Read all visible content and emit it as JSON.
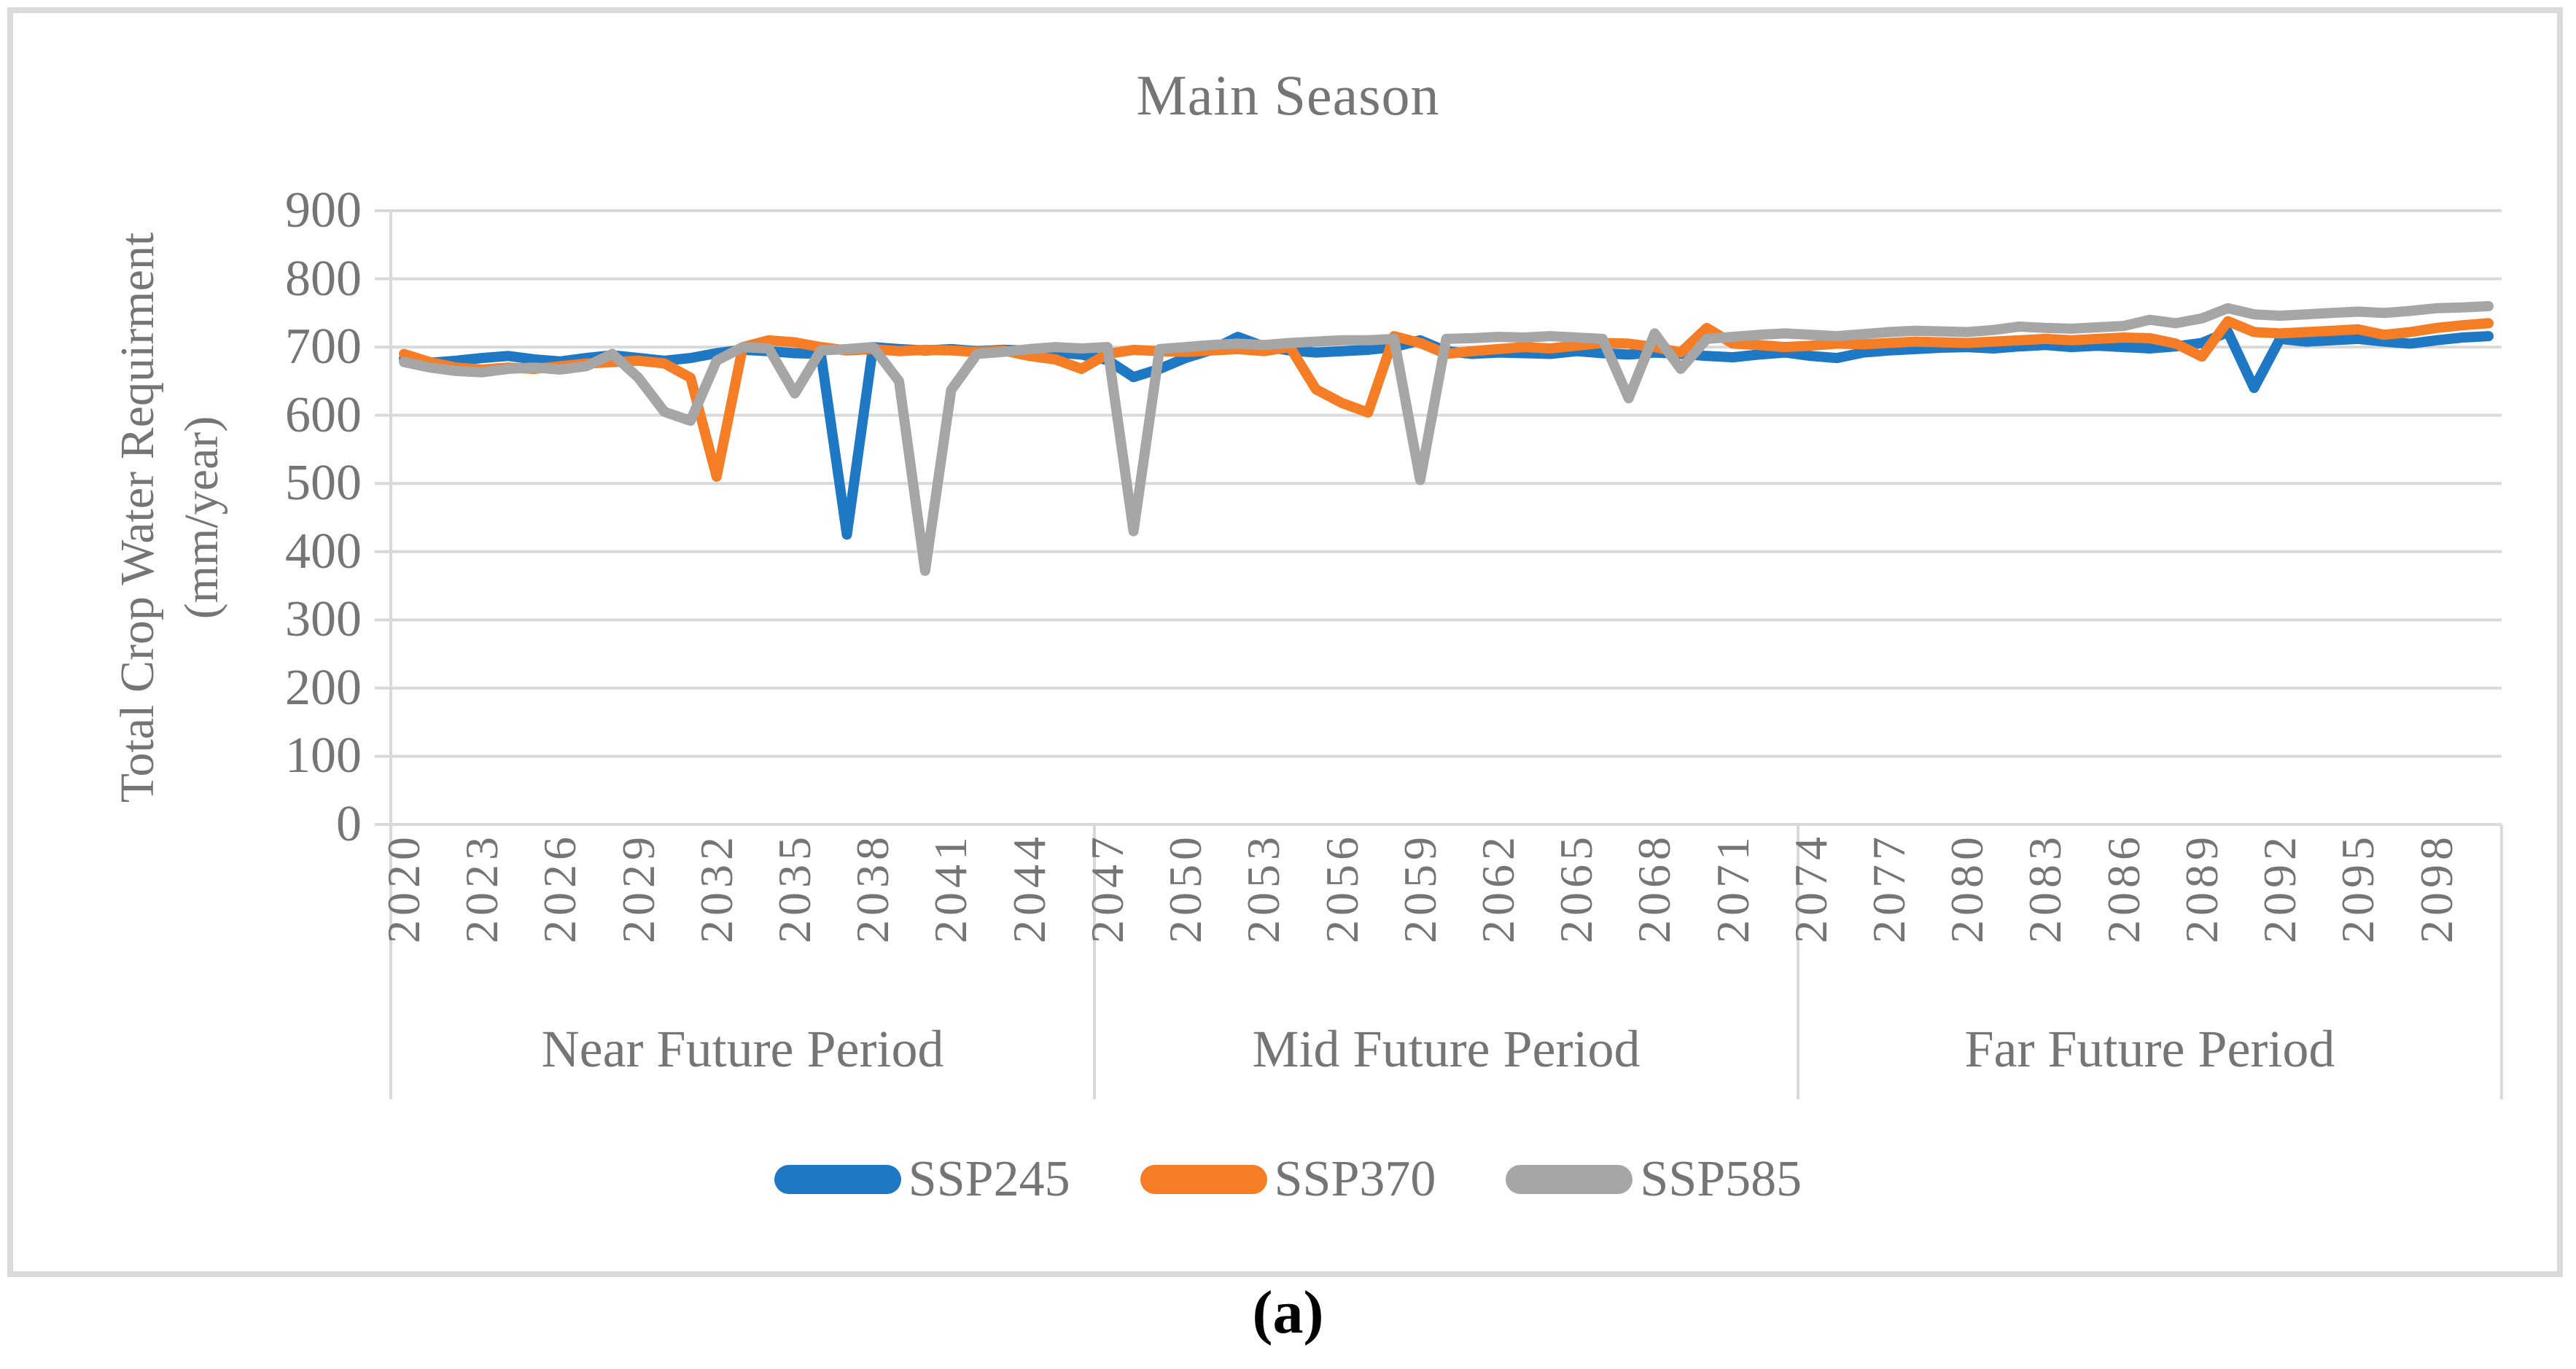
{
  "window": {
    "caption": "(a)"
  },
  "chart": {
    "title": "Main Season",
    "y_axis": {
      "title_line1": "Total Crop Water Requirment",
      "title_line2": "(mm/year)",
      "ticks": [
        0,
        100,
        200,
        300,
        400,
        500,
        600,
        700,
        800,
        900
      ]
    },
    "x_axis": {
      "tick_years": [
        2020,
        2023,
        2026,
        2029,
        2032,
        2035,
        2038,
        2041,
        2044,
        2047,
        2050,
        2053,
        2056,
        2059,
        2062,
        2065,
        2068,
        2071,
        2074,
        2077,
        2080,
        2083,
        2086,
        2089,
        2092,
        2095,
        2098
      ]
    },
    "periods": [
      {
        "label": "Near Future Period",
        "start": 2020,
        "end": 2046
      },
      {
        "label": "Mid Future Period",
        "start": 2047,
        "end": 2073
      },
      {
        "label": "Far Future Period",
        "start": 2074,
        "end": 2100
      }
    ],
    "colors": {
      "gridline": "#d9d9d9",
      "frame": "#dadada",
      "text": "#757575"
    }
  },
  "chart_data": {
    "type": "line",
    "title": "Main Season",
    "xlabel": "",
    "ylabel": "Total Crop Water Requirment (mm/year)",
    "ylim": [
      0,
      900
    ],
    "y_step": 100,
    "x_start": 2020,
    "x_end": 2100,
    "grid": true,
    "legend_position": "bottom",
    "series": [
      {
        "name": "SSP245",
        "color": "#1e78c4",
        "values": [
          683,
          677,
          680,
          684,
          687,
          682,
          679,
          684,
          688,
          684,
          680,
          684,
          691,
          696,
          694,
          691,
          690,
          425,
          700,
          697,
          695,
          697,
          694,
          696,
          695,
          692,
          689,
          681,
          656,
          668,
          684,
          696,
          715,
          701,
          695,
          692,
          694,
          696,
          700,
          710,
          694,
          690,
          692,
          691,
          690,
          694,
          691,
          689,
          692,
          690,
          687,
          685,
          689,
          692,
          687,
          684,
          692,
          695,
          697,
          699,
          700,
          698,
          701,
          703,
          700,
          702,
          700,
          698,
          701,
          706,
          722,
          640,
          712,
          708,
          710,
          712,
          708,
          705,
          710,
          714,
          716
        ]
      },
      {
        "name": "SSP370",
        "color": "#f47d26",
        "values": [
          690,
          678,
          670,
          667,
          670,
          668,
          672,
          676,
          678,
          680,
          676,
          655,
          510,
          700,
          710,
          707,
          700,
          695,
          697,
          694,
          696,
          695,
          693,
          695,
          687,
          682,
          668,
          690,
          696,
          694,
          693,
          695,
          697,
          694,
          700,
          638,
          618,
          604,
          716,
          706,
          690,
          694,
          697,
          700,
          698,
          702,
          706,
          705,
          700,
          692,
          728,
          705,
          703,
          700,
          702,
          705,
          704,
          706,
          708,
          707,
          706,
          708,
          710,
          712,
          710,
          712,
          714,
          713,
          705,
          686,
          738,
          722,
          720,
          722,
          724,
          726,
          718,
          722,
          728,
          732,
          735
        ]
      },
      {
        "name": "SSP585",
        "color": "#a6a6a6",
        "values": [
          678,
          670,
          665,
          663,
          668,
          670,
          667,
          672,
          690,
          655,
          605,
          592,
          680,
          700,
          698,
          632,
          695,
          697,
          700,
          650,
          372,
          637,
          690,
          693,
          697,
          700,
          698,
          700,
          430,
          697,
          700,
          703,
          705,
          703,
          706,
          708,
          710,
          710,
          712,
          505,
          712,
          713,
          715,
          714,
          716,
          714,
          712,
          625,
          720,
          668,
          712,
          715,
          718,
          720,
          718,
          716,
          719,
          722,
          724,
          723,
          722,
          725,
          730,
          728,
          727,
          729,
          731,
          740,
          735,
          742,
          757,
          748,
          746,
          748,
          750,
          752,
          750,
          753,
          757,
          758,
          760
        ]
      }
    ]
  }
}
